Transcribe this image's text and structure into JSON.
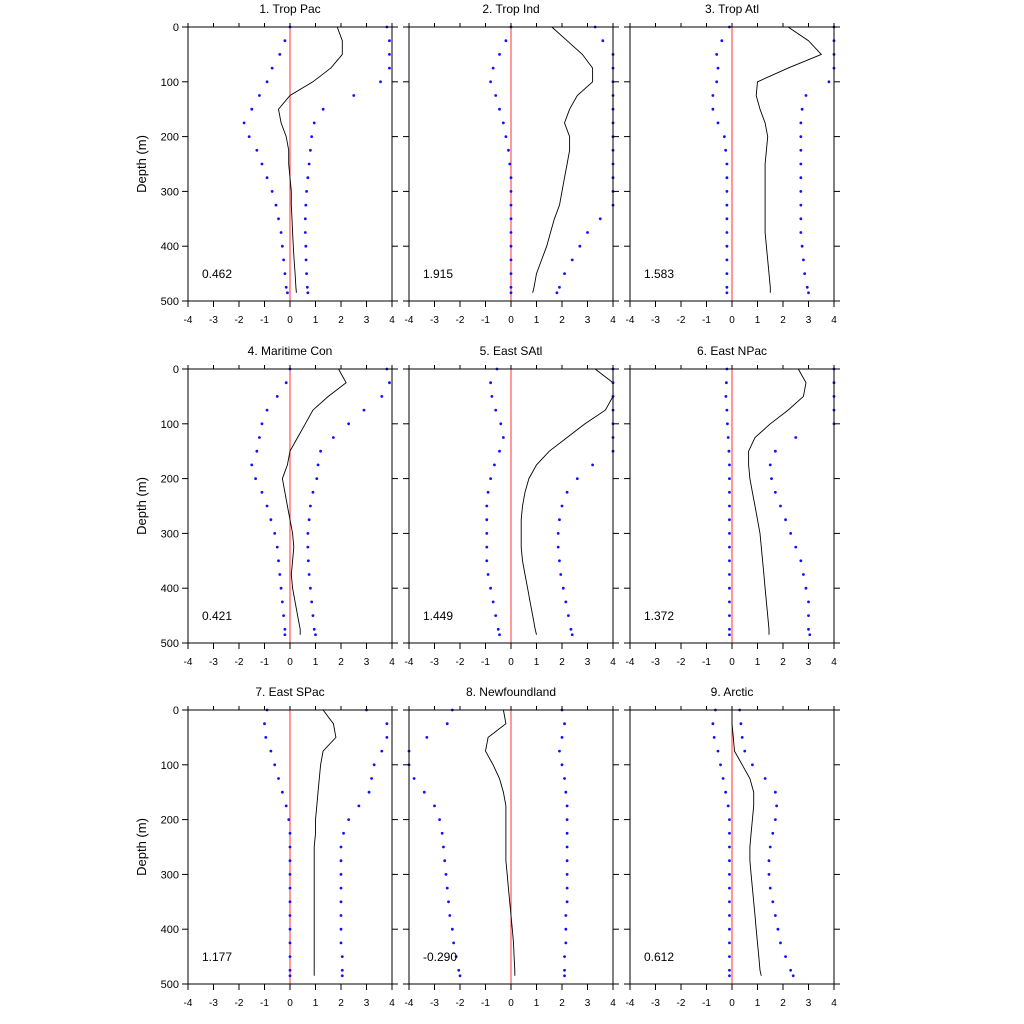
{
  "figure": {
    "ylabel": "Depth (m)",
    "xlim": [
      -4,
      4
    ],
    "ylim": [
      500,
      0
    ],
    "x_ticks": [
      "-4",
      "-3",
      "-2",
      "-1",
      "0",
      "1",
      "2",
      "3",
      "4"
    ],
    "y_ticks": [
      "0",
      "100",
      "200",
      "300",
      "400",
      "500"
    ],
    "colors": {
      "mean_line": "#000000",
      "bounds_dots": "#1010ff",
      "zero_line": "#ff3030",
      "frame": "#000000"
    }
  },
  "chart_data": [
    {
      "type": "line",
      "title": "1. Trop Pac",
      "annotation": "0.462",
      "depth": [
        0,
        25,
        50,
        75,
        100,
        125,
        150,
        175,
        200,
        225,
        250,
        275,
        300,
        325,
        350,
        375,
        400,
        425,
        450,
        475,
        485
      ],
      "mean": [
        1.85,
        2.05,
        2.05,
        1.6,
        0.9,
        0.0,
        -0.45,
        -0.35,
        -0.15,
        -0.05,
        -0.05,
        0.0,
        0.05,
        0.05,
        0.08,
        0.1,
        0.13,
        0.16,
        0.2,
        0.23,
        0.25
      ],
      "upper": [
        3.8,
        3.9,
        3.9,
        3.9,
        3.55,
        2.5,
        1.3,
        0.95,
        0.85,
        0.8,
        0.75,
        0.7,
        0.65,
        0.62,
        0.6,
        0.6,
        0.62,
        0.63,
        0.65,
        0.68,
        0.7
      ],
      "lower": [
        0.0,
        -0.2,
        -0.4,
        -0.7,
        -0.9,
        -1.2,
        -1.5,
        -1.8,
        -1.6,
        -1.3,
        -1.1,
        -0.9,
        -0.7,
        -0.55,
        -0.45,
        -0.35,
        -0.3,
        -0.25,
        -0.2,
        -0.15,
        -0.1
      ]
    },
    {
      "type": "line",
      "title": "2. Trop Ind",
      "annotation": "1.915",
      "depth": [
        0,
        25,
        50,
        75,
        100,
        125,
        150,
        175,
        200,
        225,
        250,
        275,
        300,
        325,
        350,
        375,
        400,
        425,
        450,
        475,
        485
      ],
      "mean": [
        1.6,
        2.2,
        2.8,
        3.2,
        3.2,
        2.6,
        2.3,
        2.1,
        2.3,
        2.3,
        2.2,
        2.1,
        2.0,
        1.9,
        1.7,
        1.55,
        1.4,
        1.2,
        1.0,
        0.9,
        0.85
      ],
      "upper": [
        3.3,
        3.6,
        4.5,
        4.5,
        4.5,
        4.5,
        4.5,
        4.5,
        4.5,
        4.5,
        4.5,
        4.5,
        4.5,
        4.0,
        3.5,
        3.0,
        2.7,
        2.4,
        2.1,
        1.9,
        1.8
      ],
      "lower": [
        0.0,
        -0.2,
        -0.45,
        -0.7,
        -0.8,
        -0.6,
        -0.45,
        -0.3,
        -0.2,
        -0.1,
        -0.05,
        0.0,
        0.0,
        0.0,
        0.0,
        0.0,
        0.0,
        0.0,
        0.0,
        0.0,
        0.0
      ]
    },
    {
      "type": "line",
      "title": "3. Trop Atl",
      "annotation": "1.583",
      "depth": [
        0,
        25,
        50,
        75,
        100,
        125,
        150,
        175,
        200,
        225,
        250,
        275,
        300,
        325,
        350,
        375,
        400,
        425,
        450,
        475,
        485
      ],
      "mean": [
        2.2,
        3.0,
        3.5,
        2.2,
        1.0,
        0.95,
        1.1,
        1.3,
        1.4,
        1.35,
        1.3,
        1.3,
        1.3,
        1.3,
        1.3,
        1.3,
        1.35,
        1.4,
        1.45,
        1.5,
        1.5
      ],
      "upper": [
        4.5,
        4.5,
        4.5,
        4.5,
        3.8,
        2.9,
        2.75,
        2.7,
        2.7,
        2.7,
        2.7,
        2.7,
        2.7,
        2.7,
        2.7,
        2.7,
        2.75,
        2.8,
        2.85,
        2.95,
        3.0
      ],
      "lower": [
        -0.1,
        -0.4,
        -0.6,
        -0.55,
        -0.6,
        -0.75,
        -0.75,
        -0.55,
        -0.3,
        -0.25,
        -0.2,
        -0.2,
        -0.2,
        -0.2,
        -0.2,
        -0.2,
        -0.2,
        -0.2,
        -0.2,
        -0.2,
        -0.2
      ]
    },
    {
      "type": "line",
      "title": "4. Maritime Con",
      "annotation": "0.421",
      "depth": [
        0,
        25,
        50,
        75,
        100,
        125,
        150,
        175,
        200,
        225,
        250,
        275,
        300,
        325,
        350,
        375,
        400,
        425,
        450,
        475,
        485
      ],
      "mean": [
        1.9,
        2.2,
        1.5,
        0.9,
        0.6,
        0.3,
        0.0,
        -0.1,
        -0.3,
        -0.2,
        -0.1,
        0.0,
        0.1,
        0.15,
        0.1,
        0.05,
        0.1,
        0.2,
        0.3,
        0.4,
        0.4
      ],
      "upper": [
        3.8,
        3.9,
        3.6,
        2.9,
        2.3,
        1.7,
        1.2,
        1.1,
        1.05,
        0.9,
        0.8,
        0.75,
        0.7,
        0.7,
        0.72,
        0.75,
        0.8,
        0.85,
        0.9,
        0.95,
        1.0
      ],
      "lower": [
        0.0,
        -0.15,
        -0.5,
        -0.9,
        -1.1,
        -1.2,
        -1.3,
        -1.5,
        -1.35,
        -1.1,
        -0.9,
        -0.75,
        -0.6,
        -0.5,
        -0.45,
        -0.4,
        -0.35,
        -0.3,
        -0.25,
        -0.2,
        -0.2
      ]
    },
    {
      "type": "line",
      "title": "5. East SAtl",
      "annotation": "1.449",
      "depth": [
        0,
        25,
        50,
        75,
        100,
        125,
        150,
        175,
        200,
        225,
        250,
        275,
        300,
        325,
        350,
        375,
        400,
        425,
        450,
        475,
        485
      ],
      "mean": [
        3.3,
        4.3,
        4.5,
        3.7,
        2.9,
        2.2,
        1.5,
        1.0,
        0.7,
        0.55,
        0.45,
        0.4,
        0.4,
        0.4,
        0.45,
        0.55,
        0.65,
        0.75,
        0.85,
        0.95,
        1.0
      ],
      "upper": [
        4.5,
        4.5,
        4.5,
        4.5,
        4.5,
        4.5,
        4.5,
        3.2,
        2.6,
        2.2,
        2.0,
        1.9,
        1.85,
        1.85,
        1.9,
        1.95,
        2.05,
        2.15,
        2.25,
        2.35,
        2.4
      ],
      "lower": [
        -0.55,
        -0.8,
        -0.75,
        -0.6,
        -0.4,
        -0.3,
        -0.45,
        -0.65,
        -0.8,
        -0.9,
        -0.95,
        -0.95,
        -0.95,
        -0.95,
        -0.95,
        -0.9,
        -0.8,
        -0.7,
        -0.6,
        -0.5,
        -0.45
      ]
    },
    {
      "type": "line",
      "title": "6. East NPac",
      "annotation": "1.372",
      "depth": [
        0,
        25,
        50,
        75,
        100,
        125,
        150,
        175,
        200,
        225,
        250,
        275,
        300,
        325,
        350,
        375,
        400,
        425,
        450,
        475,
        485
      ],
      "mean": [
        2.6,
        2.9,
        2.8,
        2.2,
        1.5,
        0.9,
        0.65,
        0.65,
        0.7,
        0.8,
        0.9,
        1.0,
        1.1,
        1.15,
        1.2,
        1.25,
        1.3,
        1.35,
        1.4,
        1.45,
        1.45
      ],
      "upper": [
        4.5,
        4.5,
        4.5,
        4.5,
        4.0,
        2.5,
        1.7,
        1.5,
        1.55,
        1.7,
        1.9,
        2.1,
        2.3,
        2.5,
        2.7,
        2.8,
        2.9,
        3.0,
        3.0,
        3.0,
        3.05
      ],
      "lower": [
        -0.2,
        -0.22,
        -0.24,
        -0.2,
        -0.18,
        -0.15,
        -0.12,
        -0.1,
        -0.1,
        -0.1,
        -0.1,
        -0.1,
        -0.1,
        -0.1,
        -0.1,
        -0.1,
        -0.1,
        -0.1,
        -0.1,
        -0.1,
        -0.1
      ]
    },
    {
      "type": "line",
      "title": "7. East SPac",
      "annotation": "1.177",
      "depth": [
        0,
        25,
        50,
        75,
        100,
        125,
        150,
        175,
        200,
        225,
        250,
        275,
        300,
        325,
        350,
        375,
        400,
        425,
        450,
        475,
        485
      ],
      "mean": [
        1.3,
        1.7,
        1.8,
        1.3,
        1.2,
        1.15,
        1.1,
        1.05,
        1.0,
        1.0,
        0.95,
        0.95,
        0.95,
        0.95,
        0.95,
        0.95,
        0.95,
        0.95,
        0.95,
        0.95,
        0.95
      ],
      "upper": [
        3.0,
        3.8,
        3.8,
        3.6,
        3.3,
        3.2,
        3.1,
        2.7,
        2.3,
        2.1,
        2.0,
        2.0,
        2.0,
        2.0,
        2.0,
        2.0,
        2.0,
        2.0,
        2.05,
        2.05,
        2.05
      ],
      "lower": [
        -0.9,
        -1.0,
        -0.95,
        -0.75,
        -0.6,
        -0.45,
        -0.3,
        -0.15,
        -0.05,
        0.0,
        0.0,
        0.0,
        0.0,
        0.0,
        0.0,
        0.0,
        0.0,
        0.0,
        0.0,
        0.0,
        0.0
      ]
    },
    {
      "type": "line",
      "title": "8. Newfoundland",
      "annotation": "-0.290",
      "depth": [
        0,
        25,
        50,
        75,
        100,
        125,
        150,
        175,
        200,
        225,
        250,
        275,
        300,
        325,
        350,
        375,
        400,
        425,
        450,
        475,
        485
      ],
      "mean": [
        -0.3,
        -0.2,
        -0.9,
        -1.0,
        -0.7,
        -0.45,
        -0.3,
        -0.2,
        -0.2,
        -0.2,
        -0.2,
        -0.2,
        -0.15,
        -0.1,
        -0.05,
        0.0,
        0.05,
        0.1,
        0.12,
        0.15,
        0.15
      ],
      "upper": [
        2.0,
        2.1,
        2.0,
        1.9,
        2.0,
        2.1,
        2.15,
        2.2,
        2.2,
        2.2,
        2.2,
        2.2,
        2.2,
        2.2,
        2.2,
        2.15,
        2.15,
        2.15,
        2.1,
        2.1,
        2.1
      ],
      "lower": [
        -2.3,
        -2.5,
        -3.3,
        -4.2,
        -4.2,
        -3.8,
        -3.4,
        -3.0,
        -2.8,
        -2.7,
        -2.65,
        -2.6,
        -2.55,
        -2.5,
        -2.45,
        -2.4,
        -2.3,
        -2.25,
        -2.15,
        -2.05,
        -2.0
      ]
    },
    {
      "type": "line",
      "title": "9. Arctic",
      "annotation": "0.612",
      "depth": [
        0,
        25,
        50,
        75,
        100,
        125,
        150,
        175,
        200,
        225,
        250,
        275,
        300,
        325,
        350,
        375,
        400,
        425,
        450,
        475,
        485
      ],
      "mean": [
        0.0,
        0.0,
        0.05,
        0.1,
        0.4,
        0.7,
        0.85,
        0.85,
        0.8,
        0.75,
        0.7,
        0.7,
        0.75,
        0.8,
        0.85,
        0.9,
        0.95,
        1.0,
        1.05,
        1.1,
        1.15
      ],
      "upper": [
        0.3,
        0.35,
        0.4,
        0.5,
        0.8,
        1.3,
        1.7,
        1.75,
        1.7,
        1.6,
        1.5,
        1.45,
        1.45,
        1.5,
        1.6,
        1.7,
        1.8,
        1.9,
        2.1,
        2.3,
        2.4
      ],
      "lower": [
        -0.65,
        -0.75,
        -0.7,
        -0.55,
        -0.45,
        -0.35,
        -0.25,
        -0.15,
        -0.1,
        -0.1,
        -0.1,
        -0.1,
        -0.1,
        -0.1,
        -0.1,
        -0.1,
        -0.1,
        -0.1,
        -0.1,
        -0.1,
        -0.1
      ]
    }
  ]
}
